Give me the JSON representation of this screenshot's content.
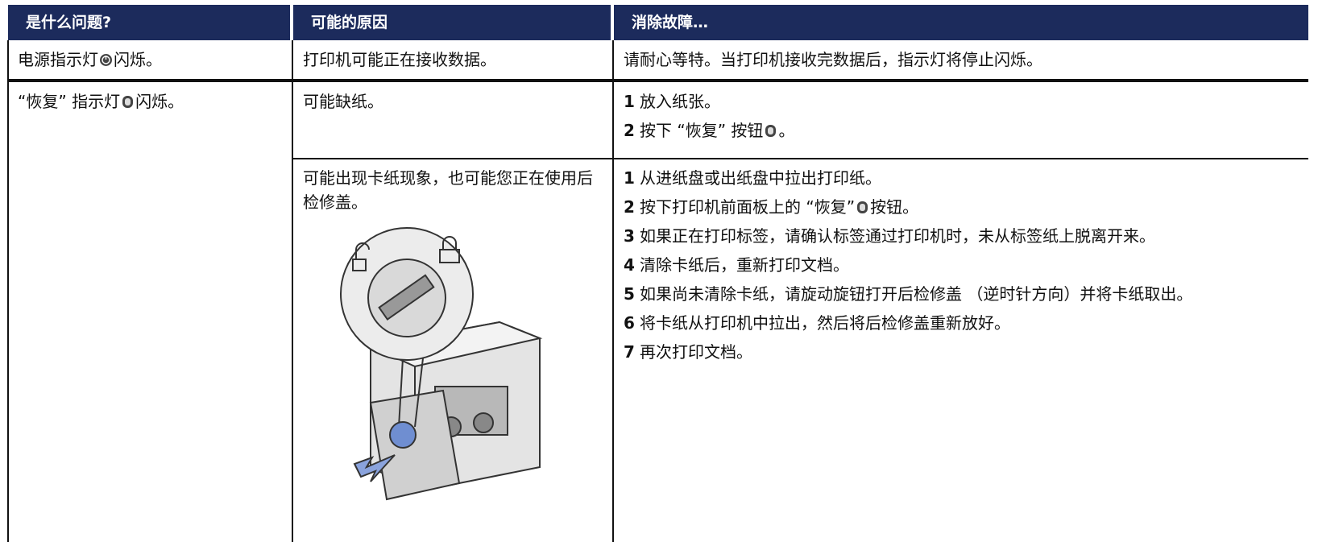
{
  "table": {
    "headers": [
      "是什么问题?",
      "可能的原因",
      "消除故障…"
    ],
    "rows": [
      {
        "problem": [
          "电源指示灯",
          "闪烁。"
        ],
        "causes": [
          {
            "cause": "打印机可能正在接收数据。",
            "solution": "请耐心等特。当打印机接收完数据后，指示灯将停止闪烁。"
          }
        ]
      },
      {
        "problem": [
          "“恢复” 指示灯",
          "闪烁。"
        ],
        "causes": [
          {
            "cause": "可能缺纸。",
            "steps": [
              {
                "number": 1,
                "text": [
                  "放入纸张。"
                ]
              },
              {
                "number": 2,
                "text": [
                  "按下 “恢复” 按钮",
                  "。"
                ]
              }
            ]
          },
          {
            "cause": "可能出现卡纸现象，也可能您正在使用后检修盖。",
            "steps": [
              {
                "number": 1,
                "text": [
                  "从进纸盘或出纸盘中拉出打印纸。"
                ]
              },
              {
                "number": 2,
                "text": [
                  "按下打印机前面板上的 “恢复”",
                  "按钮。"
                ]
              },
              {
                "number": 3,
                "text": [
                  "如果正在打印标签，请确认标签通过打印机时，未从标签纸上脱离开来。"
                ]
              },
              {
                "number": 4,
                "text": [
                  "清除卡纸后，重新打印文档。"
                ]
              },
              {
                "number": 5,
                "text": [
                  "如果尚未清除卡纸，请旋动旋钮打开后检修盖 （逆时针方向）并将卡纸取出。"
                ]
              },
              {
                "number": 6,
                "text": [
                  "将卡纸从打印机中拉出，然后将后检修盖重新放好。"
                ]
              },
              {
                "number": 7,
                "text": [
                  "再次打印文档。"
                ]
              }
            ]
          }
        ]
      }
    ]
  }
}
